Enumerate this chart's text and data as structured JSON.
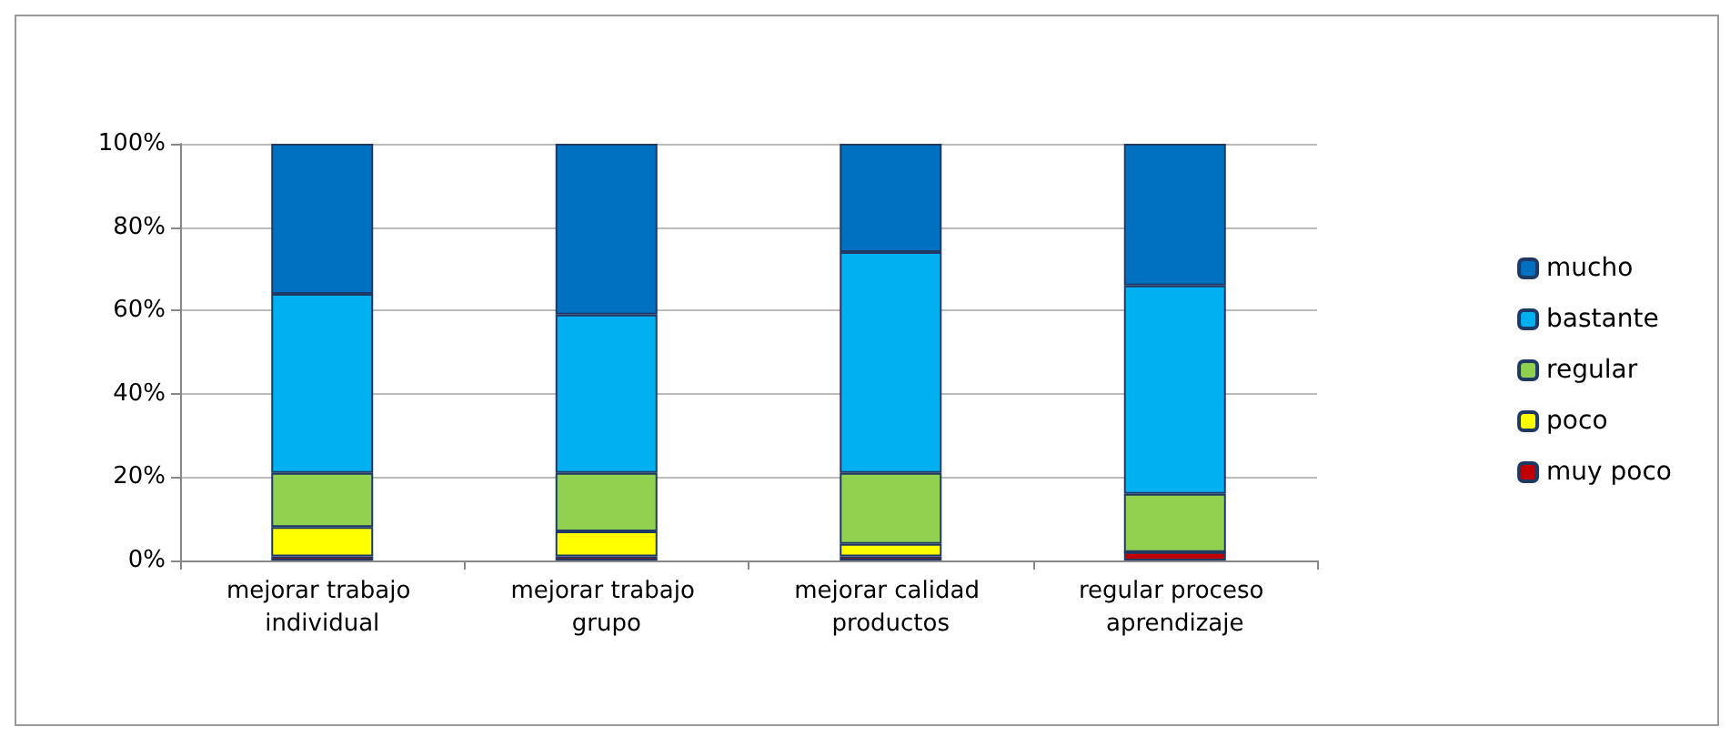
{
  "chart_data": {
    "type": "bar",
    "stacked": true,
    "categories": [
      "mejorar trabajo individual",
      "mejorar trabajo grupo",
      "mejorar calidad productos",
      "regular proceso aprendizaje"
    ],
    "series": [
      {
        "name": "muy poco",
        "color": "#c00000",
        "values": [
          1,
          1,
          1,
          2
        ]
      },
      {
        "name": "poco",
        "color": "#ffff00",
        "values": [
          7,
          6,
          3,
          0
        ]
      },
      {
        "name": "regular",
        "color": "#92d050",
        "values": [
          13,
          14,
          17,
          14
        ]
      },
      {
        "name": "bastante",
        "color": "#00b0f0",
        "values": [
          43,
          38,
          53,
          50
        ]
      },
      {
        "name": "mucho",
        "color": "#0070c0",
        "values": [
          36,
          41,
          26,
          34
        ]
      }
    ],
    "ylim": [
      0,
      100
    ],
    "yticks": [
      {
        "value": 0,
        "label": "0%"
      },
      {
        "value": 20,
        "label": "20%"
      },
      {
        "value": 40,
        "label": "40%"
      },
      {
        "value": 60,
        "label": "60%"
      },
      {
        "value": 80,
        "label": "80%"
      },
      {
        "value": 100,
        "label": "100%"
      }
    ],
    "grid": "y",
    "legend": "right"
  }
}
